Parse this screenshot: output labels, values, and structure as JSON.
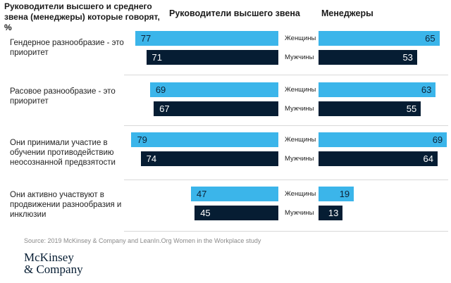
{
  "title": "Руководители высшего и среднего звена (менеджеры) которые говорят, %",
  "column_headers": [
    "Руководители высшего звена",
    "Менеджеры"
  ],
  "source": "Source: 2019 McKinsey & Company and LeanIn.Org Women in the Workplace study",
  "logo": [
    "McKinsey",
    "& Company"
  ],
  "colors": {
    "women": "#3bb5ea",
    "men": "#061d33"
  },
  "chart_data": {
    "type": "bar",
    "categories": [
      "Гендерное разнообразие - это приоритет",
      "Расовое разнообразие - это приоритет",
      "Они принимали участие в обучении противодействию неосознанной предвзятости",
      "Они активно участвуют в продвижении разнообразия и инклюзии"
    ],
    "series": [
      {
        "name": "Женщины",
        "panel": "Руководители высшего звена",
        "values": [
          77,
          69,
          79,
          47
        ]
      },
      {
        "name": "Мужчины",
        "panel": "Руководители высшего звена",
        "values": [
          71,
          67,
          74,
          45
        ]
      },
      {
        "name": "Женщины",
        "panel": "Менеджеры",
        "values": [
          65,
          63,
          69,
          19
        ]
      },
      {
        "name": "Мужчины",
        "panel": "Менеджеры",
        "values": [
          53,
          55,
          64,
          13
        ]
      }
    ],
    "xlim": [
      0,
      80
    ]
  }
}
